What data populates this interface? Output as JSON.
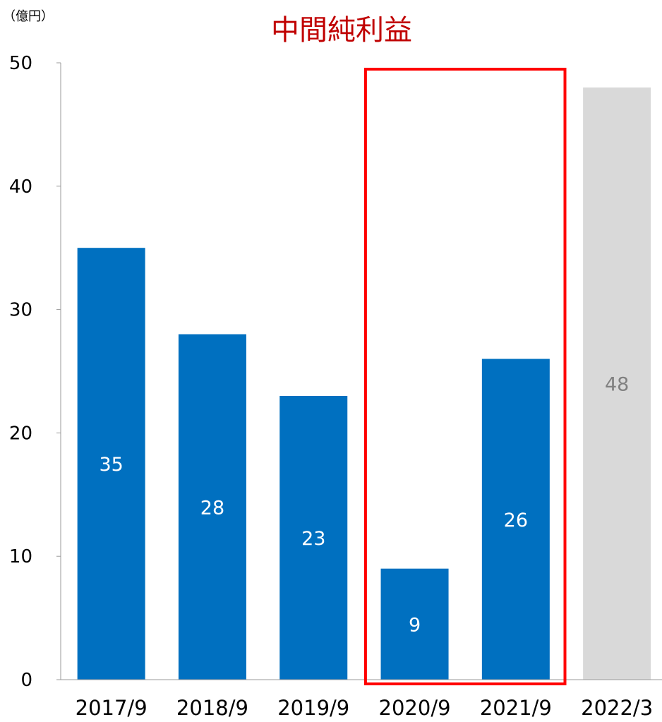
{
  "colors": {
    "bar_actual": "#0070C0",
    "bar_forecast": "#D9D9D9",
    "label_on_actual": "#FFFFFF",
    "label_on_forecast": "#808080",
    "title": "#C00000",
    "highlight_box": "#FF0000",
    "axis": "#999999"
  },
  "chart_data": {
    "type": "bar",
    "title": "中間純利益",
    "unit_label": "（億円）",
    "xlabel": "",
    "ylabel": "",
    "ylim": [
      0,
      50
    ],
    "yticks": [
      "0",
      "10",
      "20",
      "30",
      "40",
      "50"
    ],
    "grid": false,
    "categories": [
      "2017/9",
      "2018/9",
      "2019/9",
      "2020/9",
      "2021/9",
      "2022/3"
    ],
    "values": [
      35,
      28,
      23,
      9,
      26,
      48
    ],
    "data_labels": [
      "35",
      "28",
      "23",
      "9",
      "26",
      "48"
    ],
    "bar_kinds": [
      "actual",
      "actual",
      "actual",
      "actual",
      "actual",
      "forecast"
    ],
    "highlighted_categories": [
      "2020/9",
      "2021/9"
    ]
  }
}
